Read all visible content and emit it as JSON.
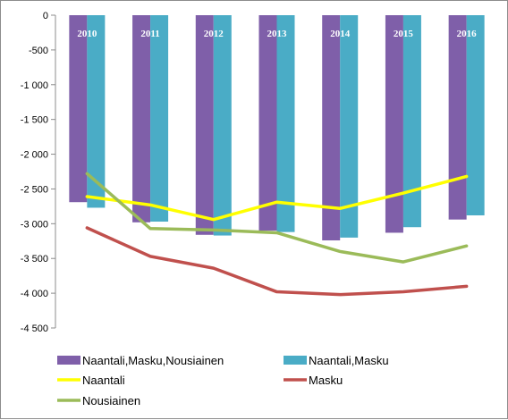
{
  "chart_data": {
    "type": "bar",
    "categories": [
      "2010",
      "2011",
      "2012",
      "2013",
      "2014",
      "2015",
      "2016"
    ],
    "y_ticks": [
      "0",
      "-500",
      "-1 000",
      "-1 500",
      "-2 000",
      "-2 500",
      "-3 000",
      "-3 500",
      "-4 000",
      "-4 500"
    ],
    "ylim": [
      -4500,
      0
    ],
    "grid": false,
    "legend_position": "bottom",
    "bar_series": [
      {
        "name": "Naantali,Masku,Nousiainen",
        "color": "#7f5fa9",
        "values": [
          -2690,
          -2980,
          -3160,
          -3100,
          -3240,
          -3130,
          -2940
        ]
      },
      {
        "name": "Naantali,Masku",
        "color": "#4aacc6",
        "values": [
          -2770,
          -2970,
          -3170,
          -3120,
          -3200,
          -3050,
          -2880
        ]
      }
    ],
    "line_series": [
      {
        "name": "Naantali",
        "color": "#ffff00",
        "values": [
          -2610,
          -2730,
          -2940,
          -2690,
          -2780,
          -2560,
          -2320
        ]
      },
      {
        "name": "Masku",
        "color": "#c0504d",
        "values": [
          -3060,
          -3470,
          -3640,
          -3980,
          -4020,
          -3980,
          -3900
        ]
      },
      {
        "name": "Nousiainen",
        "color": "#9bbb59",
        "values": [
          -2280,
          -3070,
          -3090,
          -3130,
          -3400,
          -3550,
          -3320
        ]
      }
    ]
  }
}
